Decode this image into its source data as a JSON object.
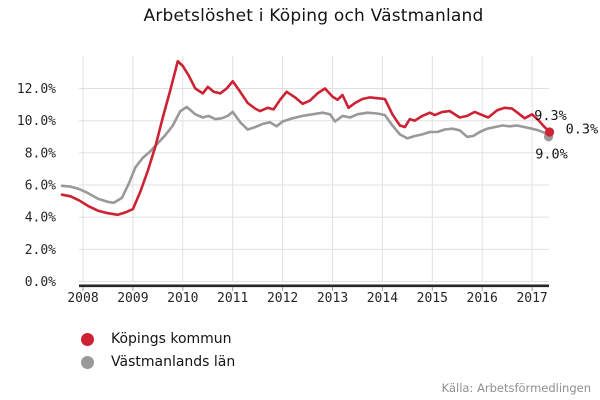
{
  "title": "Arbetslöshet i Köping och Västmanland",
  "source": "Källa: Arbetsförmedlingen",
  "colors": {
    "koping": "#cc2233",
    "lan": "#999999",
    "grid": "#e0e0e0",
    "axis": "#262626",
    "tick": "#999999",
    "tick_text": "#262626",
    "label_text": "#141414",
    "source_text": "#8f8f8f",
    "background": "#ffffff"
  },
  "legend": [
    {
      "label": "Köpings kommun",
      "color": "#cc2233"
    },
    {
      "label": "Västmanlands län",
      "color": "#999999"
    }
  ],
  "chart_data": {
    "type": "line",
    "title": "Arbetslöshet i Köping och Västmanland",
    "xlabel": "",
    "ylabel": "",
    "xlim": [
      2007.5,
      2017.5
    ],
    "ylim": [
      0,
      14
    ],
    "grid": true,
    "legend_position": "bottom-left",
    "x_ticks": [
      2008,
      2009,
      2010,
      2011,
      2012,
      2013,
      2014,
      2015,
      2016,
      2017
    ],
    "y_ticks": [
      0,
      2,
      4,
      6,
      8,
      10,
      12
    ],
    "y_tick_labels": [
      "0.0%",
      "2.0%",
      "4.0%",
      "6.0%",
      "8.0%",
      "10.0%",
      "12.0%"
    ],
    "series": [
      {
        "name": "Köpings kommun",
        "color": "#cc2233",
        "points": [
          [
            2007.58,
            5.4
          ],
          [
            2007.75,
            5.3
          ],
          [
            2007.92,
            5.05
          ],
          [
            2008.1,
            4.7
          ],
          [
            2008.3,
            4.4
          ],
          [
            2008.5,
            4.25
          ],
          [
            2008.7,
            4.15
          ],
          [
            2008.85,
            4.3
          ],
          [
            2009.0,
            4.5
          ],
          [
            2009.15,
            5.6
          ],
          [
            2009.3,
            6.9
          ],
          [
            2009.45,
            8.4
          ],
          [
            2009.6,
            10.2
          ],
          [
            2009.75,
            11.9
          ],
          [
            2009.9,
            13.7
          ],
          [
            2010.0,
            13.4
          ],
          [
            2010.12,
            12.8
          ],
          [
            2010.25,
            12.0
          ],
          [
            2010.4,
            11.7
          ],
          [
            2010.5,
            12.1
          ],
          [
            2010.62,
            11.8
          ],
          [
            2010.75,
            11.7
          ],
          [
            2010.88,
            12.0
          ],
          [
            2011.0,
            12.45
          ],
          [
            2011.15,
            11.8
          ],
          [
            2011.3,
            11.1
          ],
          [
            2011.45,
            10.75
          ],
          [
            2011.55,
            10.6
          ],
          [
            2011.7,
            10.8
          ],
          [
            2011.82,
            10.7
          ],
          [
            2011.95,
            11.3
          ],
          [
            2012.08,
            11.8
          ],
          [
            2012.25,
            11.45
          ],
          [
            2012.4,
            11.05
          ],
          [
            2012.55,
            11.25
          ],
          [
            2012.7,
            11.7
          ],
          [
            2012.85,
            12.0
          ],
          [
            2013.0,
            11.5
          ],
          [
            2013.1,
            11.3
          ],
          [
            2013.2,
            11.6
          ],
          [
            2013.32,
            10.8
          ],
          [
            2013.45,
            11.1
          ],
          [
            2013.6,
            11.35
          ],
          [
            2013.75,
            11.45
          ],
          [
            2013.9,
            11.4
          ],
          [
            2014.05,
            11.35
          ],
          [
            2014.2,
            10.4
          ],
          [
            2014.35,
            9.7
          ],
          [
            2014.45,
            9.6
          ],
          [
            2014.55,
            10.1
          ],
          [
            2014.65,
            10.0
          ],
          [
            2014.8,
            10.3
          ],
          [
            2014.95,
            10.5
          ],
          [
            2015.05,
            10.35
          ],
          [
            2015.2,
            10.55
          ],
          [
            2015.35,
            10.6
          ],
          [
            2015.55,
            10.2
          ],
          [
            2015.7,
            10.3
          ],
          [
            2015.85,
            10.55
          ],
          [
            2016.0,
            10.35
          ],
          [
            2016.12,
            10.2
          ],
          [
            2016.3,
            10.65
          ],
          [
            2016.45,
            10.8
          ],
          [
            2016.6,
            10.75
          ],
          [
            2016.75,
            10.4
          ],
          [
            2016.85,
            10.15
          ],
          [
            2017.0,
            10.4
          ],
          [
            2017.12,
            10.05
          ],
          [
            2017.25,
            9.6
          ],
          [
            2017.35,
            9.3
          ]
        ]
      },
      {
        "name": "Västmanlands län",
        "color": "#999999",
        "points": [
          [
            2007.58,
            5.95
          ],
          [
            2007.75,
            5.9
          ],
          [
            2007.92,
            5.75
          ],
          [
            2008.1,
            5.5
          ],
          [
            2008.3,
            5.15
          ],
          [
            2008.5,
            4.95
          ],
          [
            2008.62,
            4.9
          ],
          [
            2008.78,
            5.2
          ],
          [
            2008.92,
            6.1
          ],
          [
            2009.05,
            7.1
          ],
          [
            2009.2,
            7.7
          ],
          [
            2009.35,
            8.1
          ],
          [
            2009.5,
            8.6
          ],
          [
            2009.65,
            9.1
          ],
          [
            2009.8,
            9.7
          ],
          [
            2009.95,
            10.6
          ],
          [
            2010.08,
            10.85
          ],
          [
            2010.25,
            10.4
          ],
          [
            2010.4,
            10.2
          ],
          [
            2010.52,
            10.3
          ],
          [
            2010.65,
            10.1
          ],
          [
            2010.78,
            10.15
          ],
          [
            2010.9,
            10.3
          ],
          [
            2011.0,
            10.55
          ],
          [
            2011.15,
            9.9
          ],
          [
            2011.3,
            9.45
          ],
          [
            2011.45,
            9.6
          ],
          [
            2011.6,
            9.8
          ],
          [
            2011.75,
            9.9
          ],
          [
            2011.88,
            9.65
          ],
          [
            2012.0,
            9.95
          ],
          [
            2012.2,
            10.15
          ],
          [
            2012.4,
            10.3
          ],
          [
            2012.6,
            10.4
          ],
          [
            2012.8,
            10.5
          ],
          [
            2012.95,
            10.4
          ],
          [
            2013.05,
            9.95
          ],
          [
            2013.2,
            10.3
          ],
          [
            2013.35,
            10.2
          ],
          [
            2013.5,
            10.4
          ],
          [
            2013.7,
            10.5
          ],
          [
            2013.9,
            10.45
          ],
          [
            2014.05,
            10.35
          ],
          [
            2014.2,
            9.7
          ],
          [
            2014.35,
            9.15
          ],
          [
            2014.5,
            8.9
          ],
          [
            2014.65,
            9.05
          ],
          [
            2014.8,
            9.15
          ],
          [
            2014.95,
            9.3
          ],
          [
            2015.1,
            9.3
          ],
          [
            2015.25,
            9.45
          ],
          [
            2015.4,
            9.5
          ],
          [
            2015.55,
            9.4
          ],
          [
            2015.7,
            9.0
          ],
          [
            2015.82,
            9.05
          ],
          [
            2015.95,
            9.3
          ],
          [
            2016.1,
            9.5
          ],
          [
            2016.25,
            9.6
          ],
          [
            2016.4,
            9.7
          ],
          [
            2016.55,
            9.65
          ],
          [
            2016.7,
            9.7
          ],
          [
            2016.85,
            9.6
          ],
          [
            2017.0,
            9.5
          ],
          [
            2017.12,
            9.4
          ],
          [
            2017.25,
            9.25
          ],
          [
            2017.35,
            9.0
          ]
        ]
      }
    ],
    "end_annotations": [
      {
        "role": "koping-last-value",
        "text": "9.3%"
      },
      {
        "role": "gap-value",
        "text": "0.3%"
      },
      {
        "role": "lan-last-value",
        "text": "9.0%"
      }
    ]
  }
}
